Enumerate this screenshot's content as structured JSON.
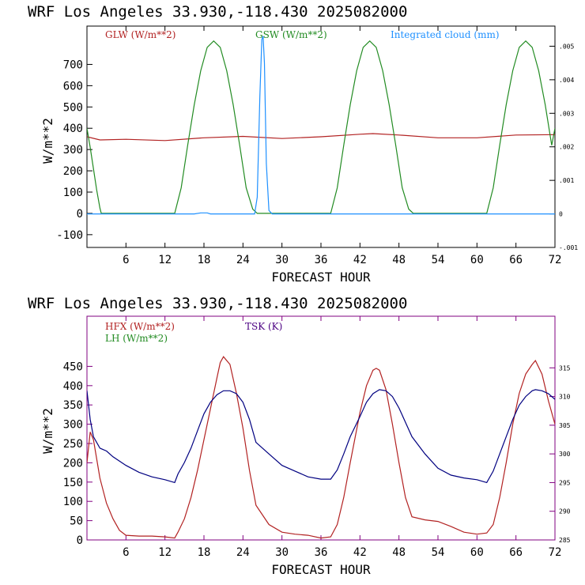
{
  "chart_data": [
    {
      "type": "line",
      "title": "WRF  Los Angeles   33.930,-118.430  2025082000",
      "xlabel": "FORECAST HOUR",
      "ylabel": "W/m**2",
      "xlim": [
        0,
        72
      ],
      "ylim": [
        -160,
        880
      ],
      "y2lim": [
        -0.001,
        0.0056
      ],
      "xticks": [
        "6",
        "12",
        "18",
        "24",
        "30",
        "36",
        "42",
        "48",
        "54",
        "60",
        "66",
        "72"
      ],
      "yticks": [
        "-100",
        "0",
        "100",
        "200",
        "300",
        "400",
        "500",
        "600",
        "700"
      ],
      "y2ticks": [
        "-.001",
        "0",
        ".001",
        ".002",
        ".003",
        ".004",
        ".005"
      ],
      "grid": false,
      "legend_placement": "top",
      "series": [
        {
          "name": "GLW (W/m**2)",
          "color": "#b22222",
          "axis": "left",
          "x": [
            0,
            2,
            6,
            12,
            18,
            24,
            30,
            36,
            42,
            44,
            48,
            54,
            60,
            66,
            72
          ],
          "y": [
            360,
            345,
            348,
            342,
            355,
            362,
            352,
            360,
            372,
            375,
            368,
            355,
            355,
            368,
            370
          ]
        },
        {
          "name": "GSW (W/m**2)",
          "color": "#228b22",
          "axis": "left",
          "x": [
            0,
            0.5,
            1,
            1.5,
            2,
            2.2,
            13.5,
            14.5,
            15.5,
            16.5,
            17.5,
            18.5,
            19.5,
            20.5,
            21.5,
            22.5,
            23.5,
            24.5,
            25.5,
            26.2,
            37.5,
            38.5,
            39.5,
            40.5,
            41.5,
            42.5,
            43.5,
            44.5,
            45.5,
            46.5,
            47.5,
            48.5,
            49.5,
            50.2,
            61.5,
            62.5,
            63.5,
            64.5,
            65.5,
            66.5,
            67.5,
            68.5,
            69.5,
            70.5,
            71.5,
            72
          ],
          "y": [
            400,
            310,
            210,
            110,
            25,
            0,
            0,
            120,
            320,
            510,
            670,
            780,
            810,
            780,
            670,
            510,
            320,
            120,
            20,
            0,
            0,
            120,
            320,
            510,
            670,
            780,
            810,
            780,
            670,
            510,
            320,
            120,
            20,
            0,
            0,
            120,
            320,
            510,
            670,
            780,
            810,
            780,
            670,
            510,
            320,
            400
          ]
        },
        {
          "name": "Integrated cloud (mm)",
          "color": "#1e90ff",
          "axis": "right",
          "x": [
            0,
            16.5,
            17.5,
            18.5,
            19,
            25.8,
            26.2,
            26.6,
            26.9,
            27.1,
            27.3,
            27.6,
            28,
            28.5,
            72
          ],
          "y": [
            0,
            0,
            3e-05,
            3e-05,
            0,
            0,
            0.0005,
            0.0035,
            0.0052,
            0.0053,
            0.0045,
            0.0015,
            0.0001,
            0,
            0
          ]
        }
      ]
    },
    {
      "type": "line",
      "title": "WRF  Los Angeles   33.930,-118.430  2025082000",
      "xlabel": "FORECAST HOUR",
      "ylabel": "W/m**2",
      "xlim": [
        0,
        72
      ],
      "ylim": [
        0,
        580
      ],
      "y2lim": [
        285,
        324
      ],
      "xticks": [
        "6",
        "12",
        "18",
        "24",
        "30",
        "36",
        "42",
        "48",
        "54",
        "60",
        "66",
        "72"
      ],
      "yticks": [
        "0",
        "50",
        "100",
        "150",
        "200",
        "250",
        "300",
        "350",
        "400",
        "450"
      ],
      "y2ticks": [
        "285",
        "290",
        "295",
        "300",
        "305",
        "310",
        "315"
      ],
      "grid": false,
      "legend_placement": "top-left",
      "series": [
        {
          "name": "HFX (W/m**2)",
          "color": "#b22222",
          "axis": "left",
          "x": [
            0,
            0.5,
            1,
            2,
            3,
            4,
            5,
            6,
            8,
            10,
            12,
            13.5,
            14,
            15,
            16,
            17,
            18,
            19,
            20,
            20.5,
            21,
            22,
            23,
            24,
            25,
            26,
            28,
            30,
            32,
            34,
            36,
            37.5,
            38.5,
            39.5,
            40.5,
            42,
            43,
            44,
            44.5,
            45,
            46,
            47,
            48,
            49,
            50,
            52,
            54,
            56,
            58,
            60,
            61.5,
            62.5,
            63.5,
            64.5,
            65.5,
            66.5,
            67.5,
            68.5,
            69,
            70,
            71,
            72
          ],
          "y": [
            200,
            280,
            260,
            160,
            95,
            55,
            25,
            12,
            10,
            10,
            8,
            5,
            20,
            55,
            110,
            180,
            260,
            340,
            420,
            460,
            475,
            455,
            380,
            290,
            180,
            90,
            40,
            20,
            15,
            12,
            5,
            8,
            40,
            110,
            200,
            330,
            400,
            440,
            445,
            440,
            390,
            300,
            200,
            110,
            60,
            52,
            48,
            35,
            20,
            15,
            18,
            40,
            110,
            200,
            300,
            380,
            430,
            455,
            465,
            430,
            360,
            300
          ]
        },
        {
          "name": "LH  (W/m**2)",
          "color": "#228b22",
          "axis": "left",
          "x": [],
          "y": []
        },
        {
          "name": "TSK (K)",
          "color": "#000080",
          "axis": "right",
          "x": [
            0,
            0.5,
            1,
            2,
            3,
            4,
            6,
            8,
            10,
            12,
            13.5,
            14,
            15,
            16,
            17,
            18,
            19,
            20,
            21,
            22,
            23,
            24,
            25,
            26,
            28,
            30,
            32,
            34,
            36,
            37.5,
            38.5,
            39.5,
            40.5,
            42,
            43,
            44,
            45,
            46,
            47,
            48,
            49,
            50,
            52,
            54,
            56,
            58,
            60,
            61.5,
            62.5,
            63.5,
            64.5,
            65.5,
            66.5,
            67.5,
            68.5,
            69,
            70,
            71,
            72
          ],
          "y": [
            311,
            306,
            303,
            301,
            300.5,
            299.5,
            298,
            296.8,
            296,
            295.5,
            295,
            296.5,
            298.5,
            301,
            304,
            307,
            309,
            310.3,
            311,
            311,
            310.5,
            309,
            306,
            302,
            300,
            298,
            297,
            296,
            295.6,
            295.6,
            297.2,
            300,
            303,
            306.5,
            309,
            310.5,
            311.2,
            311,
            310,
            308,
            305.5,
            303,
            300,
            297.5,
            296.3,
            295.8,
            295.5,
            295,
            297,
            300,
            303,
            306,
            308.5,
            310,
            311,
            311.2,
            311,
            310.5,
            309.5
          ]
        }
      ]
    }
  ]
}
